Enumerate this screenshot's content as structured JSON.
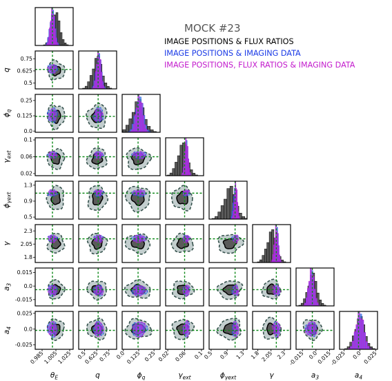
{
  "chart_data": {
    "type": "corner",
    "title": "MOCK #23",
    "legend_placement": "top-right",
    "colors": {
      "flux": "#000000",
      "fluxFill": "#5a5a5a",
      "fluxOuter": "#b9c6c6",
      "fluxOuterEdge": "#36524d",
      "img": "#1a3ae6",
      "imgFill": "#4a90e0",
      "all": "#c31ccd",
      "allFill": "#9a3ce6",
      "truth": "#0f8a1a"
    },
    "series": [
      {
        "name": "IMAGE POSITIONS & FLUX RATIOS",
        "color": "#000000"
      },
      {
        "name": "IMAGE POSITIONS & IMAGING DATA",
        "color": "#1a3ae6"
      },
      {
        "name": "IMAGE POSITIONS, FLUX RATIOS & IMAGING DATA",
        "color": "#c31ccd"
      }
    ],
    "parameters": [
      {
        "key": "theta_E",
        "label": "θ",
        "sub": "E",
        "range": [
          0.975,
          1.03
        ],
        "ticks": [
          0.985,
          1.005,
          1.025
        ],
        "tick_labels": [
          "0.985",
          "1.005",
          "1.025"
        ],
        "truth": 1.0,
        "mean_flux": 1.005,
        "sd_flux": 0.006,
        "mean_img": 1.0,
        "sd_img": 0.0035,
        "mean_all": 1.0,
        "sd_all": 0.003
      },
      {
        "key": "q",
        "label": "q",
        "sub": "",
        "range": [
          0.44,
          0.83
        ],
        "ticks": [
          0.5,
          0.625,
          0.75
        ],
        "tick_labels": [
          "0.5",
          "0.625",
          "0.75"
        ],
        "truth": 0.64,
        "mean_flux": 0.63,
        "sd_flux": 0.05,
        "mean_img": 0.645,
        "sd_img": 0.025,
        "mean_all": 0.645,
        "sd_all": 0.022
      },
      {
        "key": "phi_q",
        "label": "ϕ",
        "sub": "q",
        "range": [
          -0.01,
          0.3
        ],
        "ticks": [
          0.0,
          0.125,
          0.25
        ],
        "tick_labels": [
          "0.0",
          "0.125",
          "0.25"
        ],
        "truth": 0.12,
        "mean_flux": 0.12,
        "sd_flux": 0.05,
        "mean_img": 0.13,
        "sd_img": 0.03,
        "mean_all": 0.13,
        "sd_all": 0.025
      },
      {
        "key": "gamma_ext",
        "label": "γ",
        "sub": "ext",
        "range": [
          0.015,
          0.105
        ],
        "ticks": [
          0.02,
          0.06,
          0.1
        ],
        "tick_labels": [
          "0.02",
          "0.06",
          "0.1"
        ],
        "truth": 0.06,
        "mean_flux": 0.055,
        "sd_flux": 0.012,
        "mean_img": 0.064,
        "sd_img": 0.004,
        "mean_all": 0.064,
        "sd_all": 0.004
      },
      {
        "key": "phi_gamma_ext",
        "label": "ϕ",
        "sub": "γext",
        "range": [
          0.45,
          1.4
        ],
        "ticks": [
          0.5,
          0.9,
          1.3
        ],
        "tick_labels": [
          "0.5",
          "0.9",
          "1.3"
        ],
        "truth": 1.1,
        "mean_flux": 0.97,
        "sd_flux": 0.15,
        "mean_img": 1.1,
        "sd_img": 0.04,
        "mean_all": 1.12,
        "sd_all": 0.035
      },
      {
        "key": "gamma",
        "label": "γ",
        "sub": "",
        "range": [
          1.7,
          2.42
        ],
        "ticks": [
          1.8,
          2.05,
          2.3
        ],
        "tick_labels": [
          "1.8",
          "2.05",
          "2.3"
        ],
        "truth": 2.15,
        "mean_flux": 2.06,
        "sd_flux": 0.09,
        "mean_img": 2.16,
        "sd_img": 0.03,
        "mean_all": 2.15,
        "sd_all": 0.035
      },
      {
        "key": "a3",
        "label": "a",
        "sub": "3",
        "range": [
          -0.022,
          0.02
        ],
        "ticks": [
          -0.015,
          0.0,
          0.015
        ],
        "tick_labels": [
          "-0.015",
          "0.0",
          "0.015"
        ],
        "truth": -0.004,
        "mean_flux": -0.004,
        "sd_flux": 0.005,
        "mean_img": -0.005,
        "sd_img": 0.003,
        "mean_all": -0.005,
        "sd_all": 0.003
      },
      {
        "key": "a4",
        "label": "a",
        "sub": "4",
        "range": [
          -0.032,
          0.028
        ],
        "ticks": [
          -0.025,
          0.0,
          0.025
        ],
        "tick_labels": [
          "-0.025",
          "0.0",
          "0.025"
        ],
        "truth": -0.002,
        "mean_flux": 0.0,
        "sd_flux": 0.008,
        "mean_img": 0.0,
        "sd_img": 0.006,
        "mean_all": 0.0,
        "sd_all": 0.006
      }
    ]
  }
}
